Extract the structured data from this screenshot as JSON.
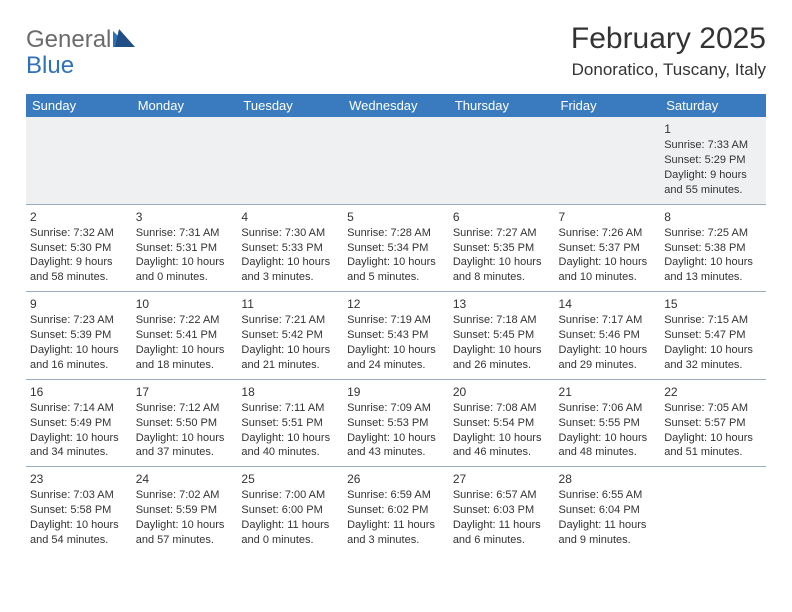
{
  "logo": {
    "word1": "General",
    "word2": "Blue"
  },
  "title": "February 2025",
  "location": "Donoratico, Tuscany, Italy",
  "colors": {
    "header_bg": "#3a7bbf",
    "header_text": "#ffffff",
    "grid_line": "#9aaec2",
    "body_text": "#333333",
    "logo_gray": "#6b6b6b",
    "logo_blue": "#2f72b8",
    "empty_bg": "#eef0f2",
    "page_bg": "#ffffff"
  },
  "typography": {
    "title_fontsize": 30,
    "location_fontsize": 17,
    "header_fontsize": 13,
    "cell_fontsize": 11,
    "daynum_fontsize": 12
  },
  "weekdays": [
    "Sunday",
    "Monday",
    "Tuesday",
    "Wednesday",
    "Thursday",
    "Friday",
    "Saturday"
  ],
  "weeks": [
    [
      null,
      null,
      null,
      null,
      null,
      null,
      {
        "n": "1",
        "sr": "Sunrise: 7:33 AM",
        "ss": "Sunset: 5:29 PM",
        "dl": "Daylight: 9 hours and 55 minutes."
      }
    ],
    [
      {
        "n": "2",
        "sr": "Sunrise: 7:32 AM",
        "ss": "Sunset: 5:30 PM",
        "dl": "Daylight: 9 hours and 58 minutes."
      },
      {
        "n": "3",
        "sr": "Sunrise: 7:31 AM",
        "ss": "Sunset: 5:31 PM",
        "dl": "Daylight: 10 hours and 0 minutes."
      },
      {
        "n": "4",
        "sr": "Sunrise: 7:30 AM",
        "ss": "Sunset: 5:33 PM",
        "dl": "Daylight: 10 hours and 3 minutes."
      },
      {
        "n": "5",
        "sr": "Sunrise: 7:28 AM",
        "ss": "Sunset: 5:34 PM",
        "dl": "Daylight: 10 hours and 5 minutes."
      },
      {
        "n": "6",
        "sr": "Sunrise: 7:27 AM",
        "ss": "Sunset: 5:35 PM",
        "dl": "Daylight: 10 hours and 8 minutes."
      },
      {
        "n": "7",
        "sr": "Sunrise: 7:26 AM",
        "ss": "Sunset: 5:37 PM",
        "dl": "Daylight: 10 hours and 10 minutes."
      },
      {
        "n": "8",
        "sr": "Sunrise: 7:25 AM",
        "ss": "Sunset: 5:38 PM",
        "dl": "Daylight: 10 hours and 13 minutes."
      }
    ],
    [
      {
        "n": "9",
        "sr": "Sunrise: 7:23 AM",
        "ss": "Sunset: 5:39 PM",
        "dl": "Daylight: 10 hours and 16 minutes."
      },
      {
        "n": "10",
        "sr": "Sunrise: 7:22 AM",
        "ss": "Sunset: 5:41 PM",
        "dl": "Daylight: 10 hours and 18 minutes."
      },
      {
        "n": "11",
        "sr": "Sunrise: 7:21 AM",
        "ss": "Sunset: 5:42 PM",
        "dl": "Daylight: 10 hours and 21 minutes."
      },
      {
        "n": "12",
        "sr": "Sunrise: 7:19 AM",
        "ss": "Sunset: 5:43 PM",
        "dl": "Daylight: 10 hours and 24 minutes."
      },
      {
        "n": "13",
        "sr": "Sunrise: 7:18 AM",
        "ss": "Sunset: 5:45 PM",
        "dl": "Daylight: 10 hours and 26 minutes."
      },
      {
        "n": "14",
        "sr": "Sunrise: 7:17 AM",
        "ss": "Sunset: 5:46 PM",
        "dl": "Daylight: 10 hours and 29 minutes."
      },
      {
        "n": "15",
        "sr": "Sunrise: 7:15 AM",
        "ss": "Sunset: 5:47 PM",
        "dl": "Daylight: 10 hours and 32 minutes."
      }
    ],
    [
      {
        "n": "16",
        "sr": "Sunrise: 7:14 AM",
        "ss": "Sunset: 5:49 PM",
        "dl": "Daylight: 10 hours and 34 minutes."
      },
      {
        "n": "17",
        "sr": "Sunrise: 7:12 AM",
        "ss": "Sunset: 5:50 PM",
        "dl": "Daylight: 10 hours and 37 minutes."
      },
      {
        "n": "18",
        "sr": "Sunrise: 7:11 AM",
        "ss": "Sunset: 5:51 PM",
        "dl": "Daylight: 10 hours and 40 minutes."
      },
      {
        "n": "19",
        "sr": "Sunrise: 7:09 AM",
        "ss": "Sunset: 5:53 PM",
        "dl": "Daylight: 10 hours and 43 minutes."
      },
      {
        "n": "20",
        "sr": "Sunrise: 7:08 AM",
        "ss": "Sunset: 5:54 PM",
        "dl": "Daylight: 10 hours and 46 minutes."
      },
      {
        "n": "21",
        "sr": "Sunrise: 7:06 AM",
        "ss": "Sunset: 5:55 PM",
        "dl": "Daylight: 10 hours and 48 minutes."
      },
      {
        "n": "22",
        "sr": "Sunrise: 7:05 AM",
        "ss": "Sunset: 5:57 PM",
        "dl": "Daylight: 10 hours and 51 minutes."
      }
    ],
    [
      {
        "n": "23",
        "sr": "Sunrise: 7:03 AM",
        "ss": "Sunset: 5:58 PM",
        "dl": "Daylight: 10 hours and 54 minutes."
      },
      {
        "n": "24",
        "sr": "Sunrise: 7:02 AM",
        "ss": "Sunset: 5:59 PM",
        "dl": "Daylight: 10 hours and 57 minutes."
      },
      {
        "n": "25",
        "sr": "Sunrise: 7:00 AM",
        "ss": "Sunset: 6:00 PM",
        "dl": "Daylight: 11 hours and 0 minutes."
      },
      {
        "n": "26",
        "sr": "Sunrise: 6:59 AM",
        "ss": "Sunset: 6:02 PM",
        "dl": "Daylight: 11 hours and 3 minutes."
      },
      {
        "n": "27",
        "sr": "Sunrise: 6:57 AM",
        "ss": "Sunset: 6:03 PM",
        "dl": "Daylight: 11 hours and 6 minutes."
      },
      {
        "n": "28",
        "sr": "Sunrise: 6:55 AM",
        "ss": "Sunset: 6:04 PM",
        "dl": "Daylight: 11 hours and 9 minutes."
      },
      null
    ]
  ]
}
